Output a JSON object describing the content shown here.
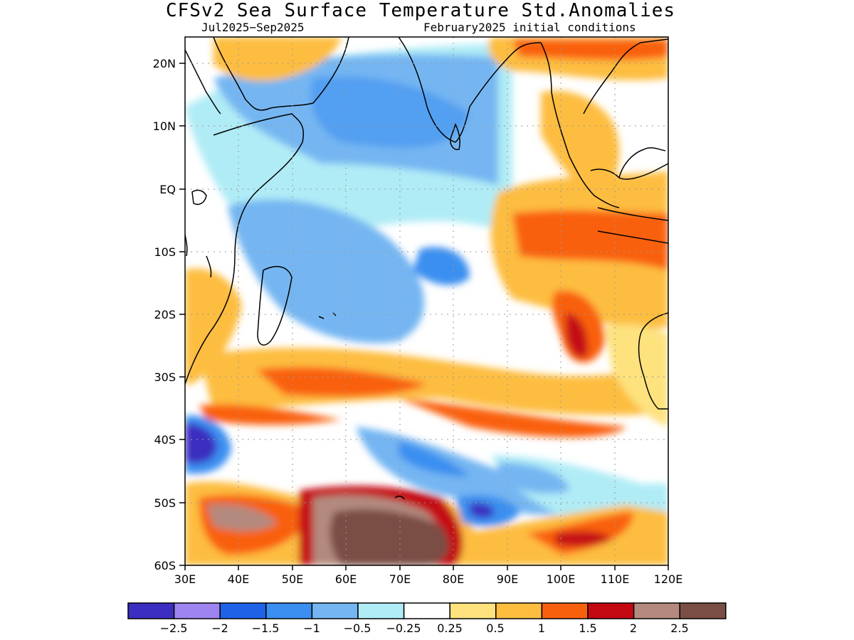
{
  "header": {
    "title": "CFSv2 Sea Surface Temperature Std.Anomalies",
    "period": "Jul2025−Sep2025",
    "init": "February2025 initial conditions"
  },
  "map": {
    "region": "Indian Ocean",
    "lon_range": [
      30,
      120
    ],
    "lat_range": [
      -60,
      24
    ],
    "lon_ticks": [
      "30E",
      "40E",
      "50E",
      "60E",
      "70E",
      "80E",
      "90E",
      "100E",
      "110E",
      "120E"
    ],
    "lat_ticks": [
      "20N",
      "10N",
      "EQ",
      "10S",
      "20S",
      "30S",
      "40S",
      "50S",
      "60S"
    ]
  },
  "colorbar": {
    "colors": [
      "#3b2ec0",
      "#9d84f0",
      "#1f62e8",
      "#3a8ff0",
      "#75b6f2",
      "#b0ecf6",
      "#ffffff",
      "#fde27e",
      "#fdbd3f",
      "#f9600e",
      "#c40812",
      "#b48a7e",
      "#7a4e44"
    ],
    "labels": [
      "−2.5",
      "−2",
      "−1.5",
      "−1",
      "−0.5",
      "−0.25",
      "0.25",
      "0.5",
      "1",
      "1.5",
      "2",
      "2.5"
    ]
  }
}
